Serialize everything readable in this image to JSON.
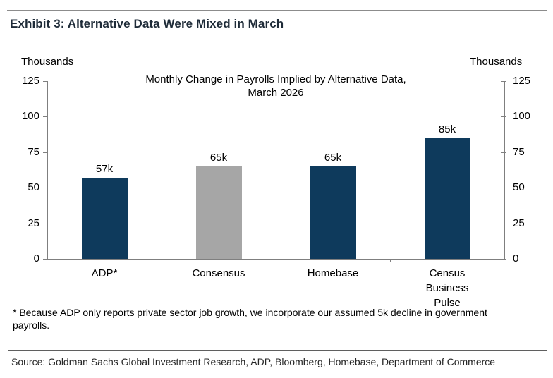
{
  "header": {
    "exhibit_title": "Exhibit 3: Alternative Data Were Mixed in March"
  },
  "chart": {
    "left_unit_label": "Thousands",
    "right_unit_label": "Thousands"
  },
  "chart_data": {
    "type": "bar",
    "title": "Monthly Change in Payrolls Implied by Alternative Data, March 2026",
    "title_lines": [
      "Monthly Change in Payrolls Implied by Alternative Data,",
      "March 2026"
    ],
    "categories": [
      "ADP*",
      "Consensus",
      "Homebase",
      "Census Business Pulse"
    ],
    "values": [
      57,
      65,
      65,
      85
    ],
    "value_labels": [
      "57k",
      "65k",
      "65k",
      "85k"
    ],
    "bar_colors": [
      "#0e3a5c",
      "#a6a6a6",
      "#0e3a5c",
      "#0e3a5c"
    ],
    "ylabel": "Thousands",
    "xlabel": "",
    "ylim": [
      0,
      125
    ],
    "yticks": [
      0,
      25,
      50,
      75,
      100,
      125
    ],
    "dual_y_axis": true,
    "grid": false,
    "legend_position": "none"
  },
  "footer": {
    "footnote": "* Because ADP only reports private sector job growth, we incorporate our assumed 5k decline in government payrolls.",
    "source": "Source: Goldman Sachs Global Investment Research, ADP, Bloomberg, Homebase, Department of Commerce"
  },
  "colors": {
    "navy": "#0e3a5c",
    "gray": "#a6a6a6",
    "title_text": "#1e2b38",
    "axis_line": "#7f7f7f"
  }
}
